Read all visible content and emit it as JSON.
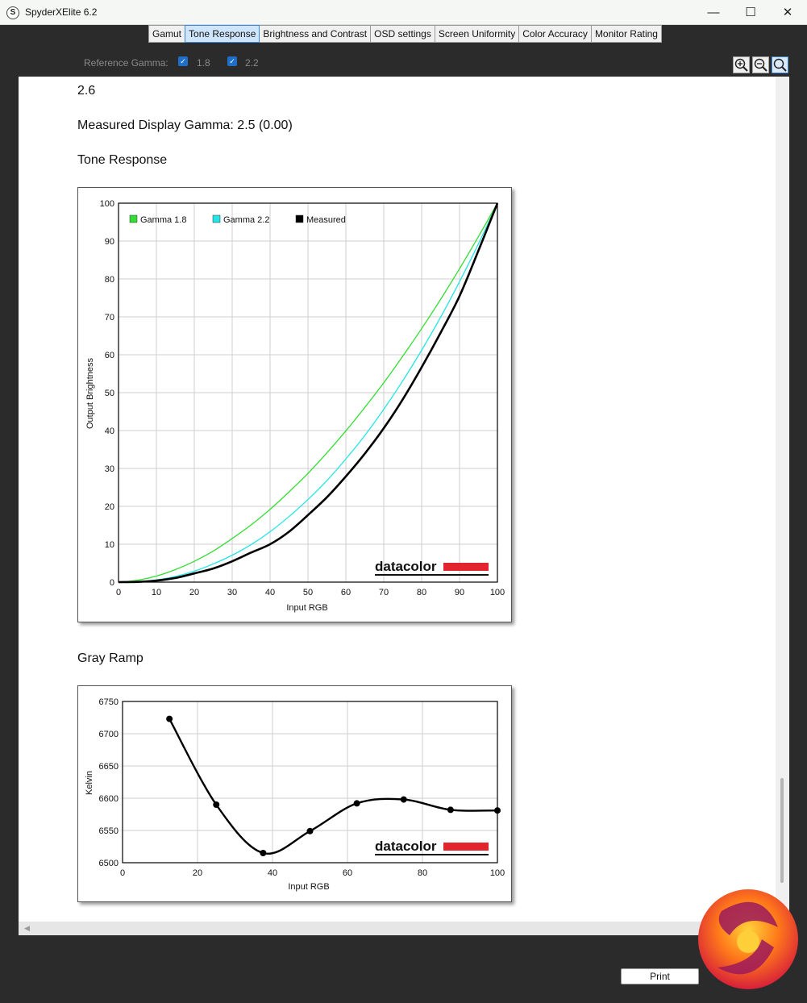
{
  "window": {
    "title": "SpyderXElite 6.2",
    "minimize": "—",
    "maximize": "☐",
    "close": "✕"
  },
  "tabs": [
    "Gamut",
    "Tone Response",
    "Brightness and Contrast",
    "OSD settings",
    "Screen Uniformity",
    "Color Accuracy",
    "Monitor Rating"
  ],
  "active_tab": "Tone Response",
  "toolbar": {
    "reference_label": "Reference Gamma:",
    "gamma_options": [
      "1.8",
      "2.2"
    ],
    "gamma_checked": [
      true,
      true
    ],
    "zoom_in": "zoom-in",
    "zoom_out": "zoom-out",
    "zoom_fit": "zoom-fit"
  },
  "report": {
    "partial_value": "2.6",
    "measured_gamma": "Measured Display Gamma: 2.5 (0.00)",
    "tone_heading": "Tone Response",
    "gray_heading": "Gray Ramp"
  },
  "brand": "datacolor",
  "colors": {
    "gamma18": "#33dd33",
    "gamma22": "#22e5e5",
    "measured": "#000000",
    "brand_red": "#e2242e"
  },
  "buttons": {
    "print": "Print"
  },
  "chart_data": [
    {
      "type": "line",
      "title": "Tone Response",
      "xlabel": "Input RGB",
      "ylabel": "Output Brightness",
      "xlim": [
        0,
        100
      ],
      "ylim": [
        0,
        100
      ],
      "xticks": [
        0,
        10,
        20,
        30,
        40,
        50,
        60,
        70,
        80,
        90,
        100
      ],
      "yticks": [
        0,
        10,
        20,
        30,
        40,
        50,
        60,
        70,
        80,
        90,
        100
      ],
      "grid": true,
      "legend_position": "top-left",
      "x": [
        0,
        5,
        10,
        15,
        20,
        25,
        30,
        35,
        40,
        45,
        50,
        55,
        60,
        65,
        70,
        75,
        80,
        85,
        90,
        95,
        100
      ],
      "series": [
        {
          "name": "Gamma 1.8",
          "values": [
            0,
            0.5,
            1.6,
            3.3,
            5.5,
            8.2,
            11.5,
            15.1,
            19.2,
            23.8,
            28.7,
            34.1,
            39.9,
            46.1,
            52.6,
            59.6,
            66.9,
            74.6,
            82.7,
            91.2,
            100
          ]
        },
        {
          "name": "Gamma 2.2",
          "values": [
            0,
            0.1,
            0.6,
            1.5,
            2.9,
            4.8,
            7.1,
            9.9,
            13.3,
            17.3,
            21.8,
            26.8,
            32.5,
            38.7,
            45.6,
            53.1,
            61.2,
            69.9,
            79.3,
            89.3,
            100
          ]
        },
        {
          "name": "Measured",
          "values": [
            0,
            0.06,
            0.4,
            1.1,
            2.3,
            3.6,
            5.5,
            7.8,
            10.0,
            13.3,
            17.7,
            22.4,
            27.9,
            33.9,
            40.6,
            48.2,
            56.7,
            65.8,
            75.5,
            87.5,
            100
          ]
        }
      ]
    },
    {
      "type": "line",
      "title": "Gray Ramp",
      "xlabel": "Input RGB",
      "ylabel": "Kelvin",
      "xlim": [
        0,
        100
      ],
      "ylim": [
        6500,
        6750
      ],
      "xticks": [
        0,
        20,
        40,
        60,
        80,
        100
      ],
      "yticks": [
        6500,
        6550,
        6600,
        6650,
        6700,
        6750
      ],
      "grid": true,
      "x": [
        12.5,
        25,
        37.5,
        50,
        62.5,
        75,
        87.5,
        100
      ],
      "series": [
        {
          "name": "",
          "values": [
            6723,
            6590,
            6515,
            6549,
            6592,
            6598,
            6582,
            6581
          ]
        }
      ]
    }
  ]
}
